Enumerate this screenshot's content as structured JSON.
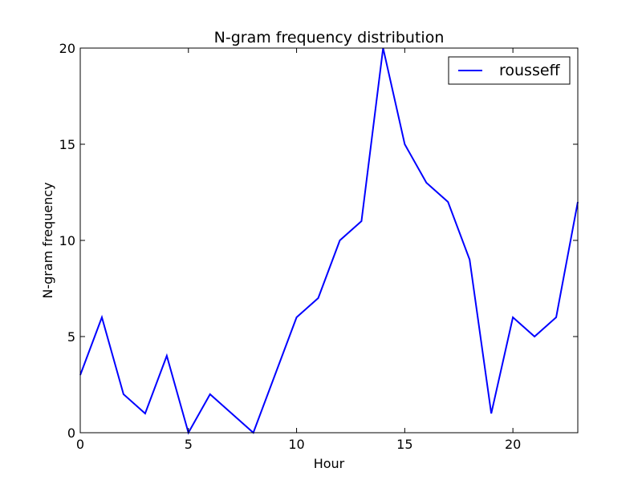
{
  "chart_data": {
    "type": "line",
    "title": "N-gram frequency distribution",
    "xlabel": "Hour",
    "ylabel": "N-gram frequency",
    "xlim": [
      0,
      23
    ],
    "ylim": [
      0,
      20
    ],
    "xticks": [
      0,
      5,
      10,
      15,
      20
    ],
    "yticks": [
      0,
      5,
      10,
      15,
      20
    ],
    "grid": false,
    "legend_position": "top-right",
    "x": [
      0,
      1,
      2,
      3,
      4,
      5,
      6,
      7,
      8,
      9,
      10,
      11,
      12,
      13,
      14,
      15,
      16,
      17,
      18,
      19,
      20,
      21,
      22,
      23
    ],
    "series": [
      {
        "name": "rousseff",
        "color": "#0000ff",
        "values": [
          3,
          6,
          2,
          1,
          4,
          0,
          2,
          1,
          0,
          3,
          6,
          7,
          10,
          11,
          20,
          15,
          13,
          12,
          9,
          1,
          6,
          5,
          6,
          12
        ]
      }
    ]
  }
}
